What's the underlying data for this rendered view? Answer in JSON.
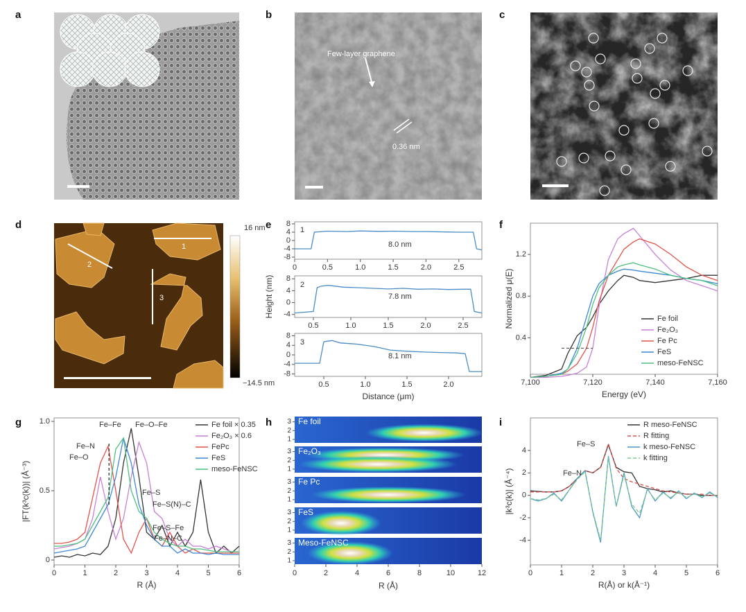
{
  "panel_labels": [
    "a",
    "b",
    "c",
    "d",
    "e",
    "f",
    "g",
    "h",
    "i"
  ],
  "images": {
    "b": {
      "annotations": [
        "Few-layer graphene",
        "0.36 nm"
      ]
    },
    "d": {
      "profile_labels": [
        "1",
        "2",
        "3"
      ],
      "colorbar": [
        "16 nm",
        "−14.5 nm"
      ]
    }
  },
  "chart_data": [
    {
      "type": "line",
      "x": [
        0,
        0.25,
        0.3,
        0.5,
        0.8,
        1,
        1.3,
        1.5,
        1.8,
        2,
        2.3,
        2.5,
        2.72,
        2.77,
        2.85
      ],
      "values": [
        -4,
        -4,
        4,
        4.5,
        4.3,
        4.6,
        4.4,
        4.5,
        4.3,
        4.3,
        4.1,
        4,
        4,
        -4,
        -4.5
      ],
      "color": "#4a8cc7",
      "xlim": [
        0,
        2.85
      ],
      "ylim": [
        -9,
        9
      ],
      "xticks": [
        0,
        0.5,
        {
          "value": 1,
          "label": "1.0"
        },
        1.5,
        {
          "value": 2,
          "label": "2.0"
        },
        2.5
      ],
      "yticks": [
        8,
        4,
        0,
        -4,
        -8
      ],
      "annotations": [
        "1",
        "8.0 nm"
      ]
    },
    {
      "type": "line",
      "x": [
        0.25,
        0.5,
        0.55,
        0.6,
        0.7,
        0.9,
        1.1,
        1.3,
        1.5,
        1.7,
        1.9,
        2.1,
        2.3,
        2.5,
        2.6,
        2.65,
        2.75
      ],
      "values": [
        -3.5,
        -3,
        5,
        5.5,
        5.8,
        5.2,
        5,
        4.8,
        4.6,
        4.8,
        4.5,
        4.6,
        4.4,
        4.5,
        4.5,
        -3,
        -3.5
      ],
      "color": "#4a8cc7",
      "xlim": [
        0.25,
        2.75
      ],
      "ylim": [
        -5,
        9
      ],
      "xticks": [
        0.5,
        {
          "value": 1,
          "label": "1.0"
        },
        1.5,
        {
          "value": 2,
          "label": "2.0"
        },
        2.5
      ],
      "yticks": [
        8,
        4,
        0,
        -4
      ],
      "annotations": [
        "2",
        "7.8 nm"
      ],
      "ylabel": "Height (nm)"
    },
    {
      "type": "line",
      "x": [
        0.15,
        0.45,
        0.5,
        0.6,
        0.7,
        0.9,
        1.1,
        1.3,
        1.5,
        1.7,
        1.9,
        2.1,
        2.2,
        2.25,
        2.4
      ],
      "values": [
        -3.5,
        -3.5,
        5.5,
        6,
        5,
        4.5,
        3.5,
        2,
        1.5,
        1.2,
        1,
        0.8,
        0.5,
        -7,
        -7
      ],
      "color": "#4a8cc7",
      "xlim": [
        0.15,
        2.4
      ],
      "ylim": [
        -9,
        9
      ],
      "xticks": [
        0.5,
        {
          "value": 1,
          "label": "1.0"
        },
        1.5,
        {
          "value": 2,
          "label": "2.0"
        }
      ],
      "yticks": [
        8,
        4,
        0,
        -4,
        -8
      ],
      "annotations": [
        "3",
        "8.1 nm"
      ],
      "xlabel": "Distance (μm)"
    },
    {
      "type": "line",
      "xlabel": "Energy (eV)",
      "ylabel": "Normalized μ(E)",
      "x": [
        7100,
        7105,
        7110,
        7112,
        7115,
        7118,
        7120,
        7122,
        7125,
        7128,
        7130,
        7133,
        7135,
        7140,
        7145,
        7150,
        7155,
        7160
      ],
      "series": [
        {
          "name": "Fe foil",
          "color": "#333333",
          "values": [
            0.02,
            0.04,
            0.1,
            0.25,
            0.42,
            0.5,
            0.6,
            0.72,
            0.85,
            0.95,
            1.0,
            0.98,
            0.95,
            0.93,
            0.95,
            0.97,
            1.0,
            1.0
          ]
        },
        {
          "name": "Fe₂O₃",
          "color": "#c77fd9",
          "values": [
            0.02,
            0.02,
            0.03,
            0.04,
            0.06,
            0.12,
            0.3,
            0.7,
            1.15,
            1.35,
            1.4,
            1.45,
            1.38,
            1.2,
            1.05,
            0.95,
            0.9,
            0.85
          ]
        },
        {
          "name": "Fe Pc",
          "color": "#e0534a",
          "values": [
            0.02,
            0.03,
            0.05,
            0.08,
            0.15,
            0.3,
            0.5,
            0.75,
            1.0,
            1.15,
            1.25,
            1.32,
            1.35,
            1.3,
            1.2,
            1.08,
            1.0,
            0.95
          ]
        },
        {
          "name": "FeS",
          "color": "#3d86d6",
          "values": [
            0.02,
            0.03,
            0.06,
            0.1,
            0.3,
            0.6,
            0.8,
            0.92,
            1.0,
            1.04,
            1.06,
            1.05,
            1.04,
            1.02,
            1.0,
            0.97,
            0.95,
            0.92
          ]
        },
        {
          "name": "meso-FeNSC",
          "color": "#4fbf80",
          "values": [
            0.02,
            0.03,
            0.05,
            0.1,
            0.25,
            0.5,
            0.72,
            0.88,
            1.0,
            1.08,
            1.1,
            1.12,
            1.1,
            1.06,
            1.0,
            0.97,
            0.95,
            0.9
          ]
        }
      ],
      "xlim": [
        7100,
        7160
      ],
      "ylim": [
        0.05,
        1.5
      ],
      "xticks": [
        {
          "value": 7100,
          "label": "7,100"
        },
        {
          "value": 7120,
          "label": "7,120"
        },
        {
          "value": 7140,
          "label": "7,140"
        },
        {
          "value": 7160,
          "label": "7,160"
        }
      ],
      "yticks": [
        0.4,
        0.8,
        1.2
      ],
      "legend": "lower right",
      "reference_line": {
        "x": [
          7110,
          7120
        ],
        "y": 0.3,
        "color": "#555555"
      }
    },
    {
      "type": "line",
      "xlabel": "R (Å)",
      "ylabel": "|FT(k³c(k))| (Å⁻³)",
      "x": [
        0,
        0.25,
        0.5,
        0.75,
        1,
        1.25,
        1.5,
        1.75,
        2,
        2.25,
        2.5,
        2.75,
        3,
        3.25,
        3.5,
        3.75,
        4,
        4.25,
        4.5,
        4.75,
        5,
        5.25,
        5.5,
        5.75,
        6
      ],
      "series": [
        {
          "name": "Fe foil × 0.35",
          "color": "#333333",
          "values": [
            0.02,
            0.03,
            0.02,
            0.04,
            0.03,
            0.05,
            0.04,
            0.1,
            0.3,
            0.7,
            0.95,
            0.6,
            0.2,
            0.15,
            0.25,
            0.1,
            0.2,
            0.1,
            0.2,
            0.58,
            0.2,
            0.05,
            0.1,
            0.05,
            0.1
          ]
        },
        {
          "name": "Fe₂O₃ × 0.6",
          "color": "#c77fd9",
          "values": [
            0.08,
            0.09,
            0.1,
            0.12,
            0.15,
            0.3,
            0.6,
            0.35,
            0.15,
            0.3,
            0.6,
            0.85,
            0.7,
            0.35,
            0.3,
            0.15,
            0.1,
            0.15,
            0.1,
            0.1,
            0.08,
            0.1,
            0.08,
            0.06,
            0.06
          ]
        },
        {
          "name": "FePc",
          "color": "#e0534a",
          "values": [
            0.12,
            0.12,
            0.13,
            0.15,
            0.2,
            0.45,
            0.7,
            0.82,
            0.5,
            0.15,
            0.05,
            0.2,
            0.3,
            0.15,
            0.1,
            0.2,
            0.1,
            0.05,
            0.08,
            0.05,
            0.05,
            0.05,
            0.05,
            0.05,
            0.05
          ]
        },
        {
          "name": "FeS",
          "color": "#3d86d6",
          "values": [
            0.05,
            0.06,
            0.07,
            0.08,
            0.1,
            0.2,
            0.3,
            0.4,
            0.6,
            0.88,
            0.7,
            0.4,
            0.25,
            0.15,
            0.1,
            0.1,
            0.05,
            0.08,
            0.05,
            0.05,
            0.04,
            0.05,
            0.04,
            0.04,
            0.04
          ]
        },
        {
          "name": "meso-FeNSC",
          "color": "#4fbf80",
          "values": [
            0.1,
            0.1,
            0.11,
            0.12,
            0.15,
            0.25,
            0.35,
            0.45,
            0.8,
            0.88,
            0.5,
            0.35,
            0.3,
            0.2,
            0.15,
            0.12,
            0.1,
            0.1,
            0.08,
            0.08,
            0.07,
            0.06,
            0.06,
            0.06,
            0.06
          ]
        }
      ],
      "xlim": [
        0,
        6
      ],
      "ylim": [
        -0.035,
        1.025
      ],
      "xticks": [
        0,
        1,
        2,
        3,
        4,
        5,
        6
      ],
      "yticks": [
        0,
        0.5,
        {
          "value": 1,
          "label": "1.0"
        }
      ],
      "legend": "upper right",
      "annotations": [
        "Fe–Fe",
        "Fe–O–Fe",
        "Fe–N",
        "Fe–O",
        "Fe–S",
        "Fe–S(N)–C",
        "Fe–S–Fe",
        "Fe–N–C"
      ],
      "reference_line": {
        "x": 1.78,
        "y": [
          0.4,
          0.85
        ],
        "color": "#222222"
      }
    },
    {
      "type": "wavelet",
      "xlabel": "R (Å)",
      "xlim": [
        0,
        12
      ],
      "xticks": [
        0,
        2,
        4,
        6,
        8,
        10,
        12
      ],
      "panels": [
        {
          "name": "Fe foil",
          "ylim": [
            0.6,
            3.6
          ],
          "yticks": [
            1,
            2,
            3
          ]
        },
        {
          "name": "Fe₂O₃",
          "ylim": [
            0.6,
            3.6
          ],
          "yticks": [
            1,
            2,
            3
          ]
        },
        {
          "name": "Fe Pc",
          "ylim": [
            0.6,
            3.6
          ],
          "yticks": [
            1,
            2,
            3
          ]
        },
        {
          "name": "FeS",
          "ylim": [
            0.6,
            3.6
          ],
          "yticks": [
            1,
            2,
            3
          ]
        },
        {
          "name": "Meso-FeNSC",
          "ylim": [
            0.6,
            3.6
          ],
          "yticks": [
            1,
            2,
            3
          ]
        }
      ]
    },
    {
      "type": "line",
      "xlabel": "R(Å) or k(Å⁻¹)",
      "ylabel": "|k³c(k)| (Å⁻⁴)",
      "x": [
        0,
        0.25,
        0.5,
        0.75,
        1,
        1.25,
        1.5,
        1.75,
        2,
        2.25,
        2.5,
        2.75,
        3,
        3.25,
        3.5,
        3.75,
        4,
        4.25,
        4.5,
        4.75,
        5,
        5.25,
        5.5,
        5.75,
        6
      ],
      "series": [
        {
          "name": "R meso-FeNSC",
          "color": "#333333",
          "values": [
            0.4,
            0.35,
            0.3,
            0.3,
            0.4,
            0.8,
            1.5,
            2.2,
            2.0,
            2.5,
            4.5,
            2.5,
            2.1,
            2.0,
            0.8,
            0.6,
            0.5,
            0.3,
            0.4,
            0.2,
            0.1,
            0.1,
            0.0,
            0.0,
            0.0
          ]
        },
        {
          "name": "R fitting",
          "color": "#e05050",
          "dash": true,
          "values": [
            0.3,
            0.3,
            0.3,
            0.3,
            0.4,
            0.8,
            1.5,
            2.2,
            2.0,
            2.5,
            4.6,
            2.4,
            1.5,
            1.2,
            1.0,
            0.8,
            0.6,
            0.4,
            0.3,
            0.2,
            0.1,
            0.1,
            0.1,
            0.0,
            0.0
          ]
        },
        {
          "name": "k meso-FeNSC",
          "color": "#4a98c8",
          "values": [
            -0.3,
            -0.5,
            -0.3,
            0.2,
            -0.5,
            0.5,
            1.5,
            2.2,
            -1.5,
            -4.2,
            3.5,
            -1.0,
            2.0,
            -1.0,
            -2.0,
            0.6,
            -0.5,
            0.3,
            -0.3,
            0.4,
            -0.3,
            0.2,
            -0.2,
            0.3,
            -0.2
          ]
        },
        {
          "name": "k fitting",
          "color": "#80c890",
          "dash": true,
          "values": [
            -0.3,
            -0.4,
            -0.3,
            0.1,
            -0.4,
            0.5,
            1.4,
            2.1,
            -1.4,
            -4.0,
            3.4,
            -1.0,
            1.8,
            -0.8,
            -1.6,
            0.5,
            -0.4,
            0.2,
            -0.2,
            0.3,
            -0.2,
            0.1,
            -0.1,
            0.2,
            -0.1
          ]
        }
      ],
      "xlim": [
        0,
        6
      ],
      "ylim": [
        -6.2,
        6.9
      ],
      "xticks": [
        0,
        1,
        2,
        3,
        4,
        5,
        6
      ],
      "yticks": [
        -4,
        -2,
        0,
        2,
        4
      ],
      "legend": "upper right",
      "annotations": [
        "Fe–S",
        "Fe–N"
      ]
    }
  ]
}
